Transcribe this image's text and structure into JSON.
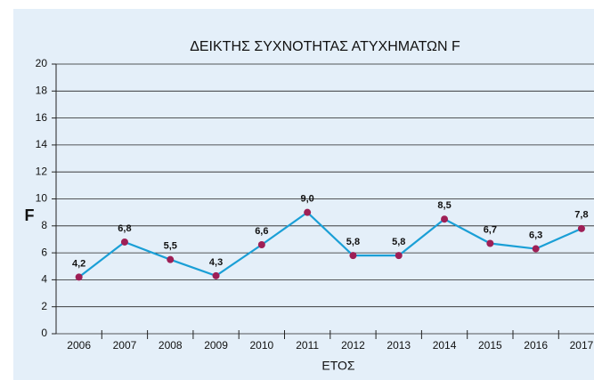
{
  "chart_data": {
    "type": "line",
    "title": "ΔΕΙΚΤΗΣ ΣΥΧΝΟΤΗΤΑΣ ΑΤΥΧΗΜΑΤΩΝ F",
    "xlabel": "ΕΤΟΣ",
    "ylabel": "F",
    "categories": [
      "2006",
      "2007",
      "2008",
      "2009",
      "2010",
      "2011",
      "2012",
      "2013",
      "2014",
      "2015",
      "2016",
      "2017"
    ],
    "series": [
      {
        "name": "F",
        "color": "#1a9fd6",
        "marker_color": "#9e1f56",
        "values": [
          4.2,
          6.8,
          5.5,
          4.3,
          6.6,
          9.0,
          5.8,
          5.8,
          8.5,
          6.7,
          6.3,
          7.8
        ],
        "value_labels": [
          "4,2",
          "6,8",
          "5,5",
          "4,3",
          "6,6",
          "9,0",
          "5,8",
          "5,8",
          "8,5",
          "6,7",
          "6,3",
          "7,8"
        ]
      }
    ],
    "ylim": [
      0,
      20
    ],
    "yticks": [
      0,
      2,
      4,
      6,
      8,
      10,
      12,
      14,
      16,
      18,
      20
    ],
    "grid": true
  }
}
